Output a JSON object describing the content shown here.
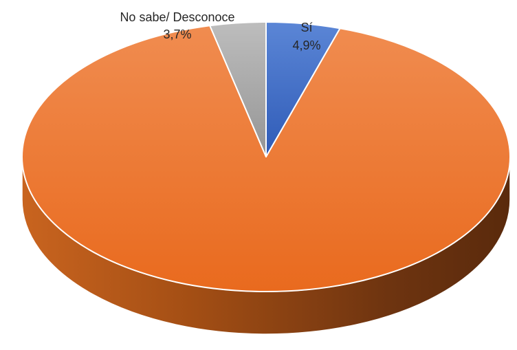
{
  "chart_data": {
    "type": "pie",
    "title": "",
    "categories": [
      "Sí",
      "No",
      "No sabe/ Desconoce"
    ],
    "values": [
      4.9,
      91.4,
      3.7
    ],
    "unit": "%",
    "colors": {
      "Sí": "#4472C4",
      "No": "#ED7D31",
      "No sabe/ Desconoce": "#A5A5A5"
    },
    "visible_labels": [
      {
        "name": "No sabe/ Desconoce",
        "value_text": "3,7%"
      },
      {
        "name": "Sí",
        "value_text": "4,9%"
      }
    ],
    "style": "3d-pie",
    "legend": "none"
  }
}
